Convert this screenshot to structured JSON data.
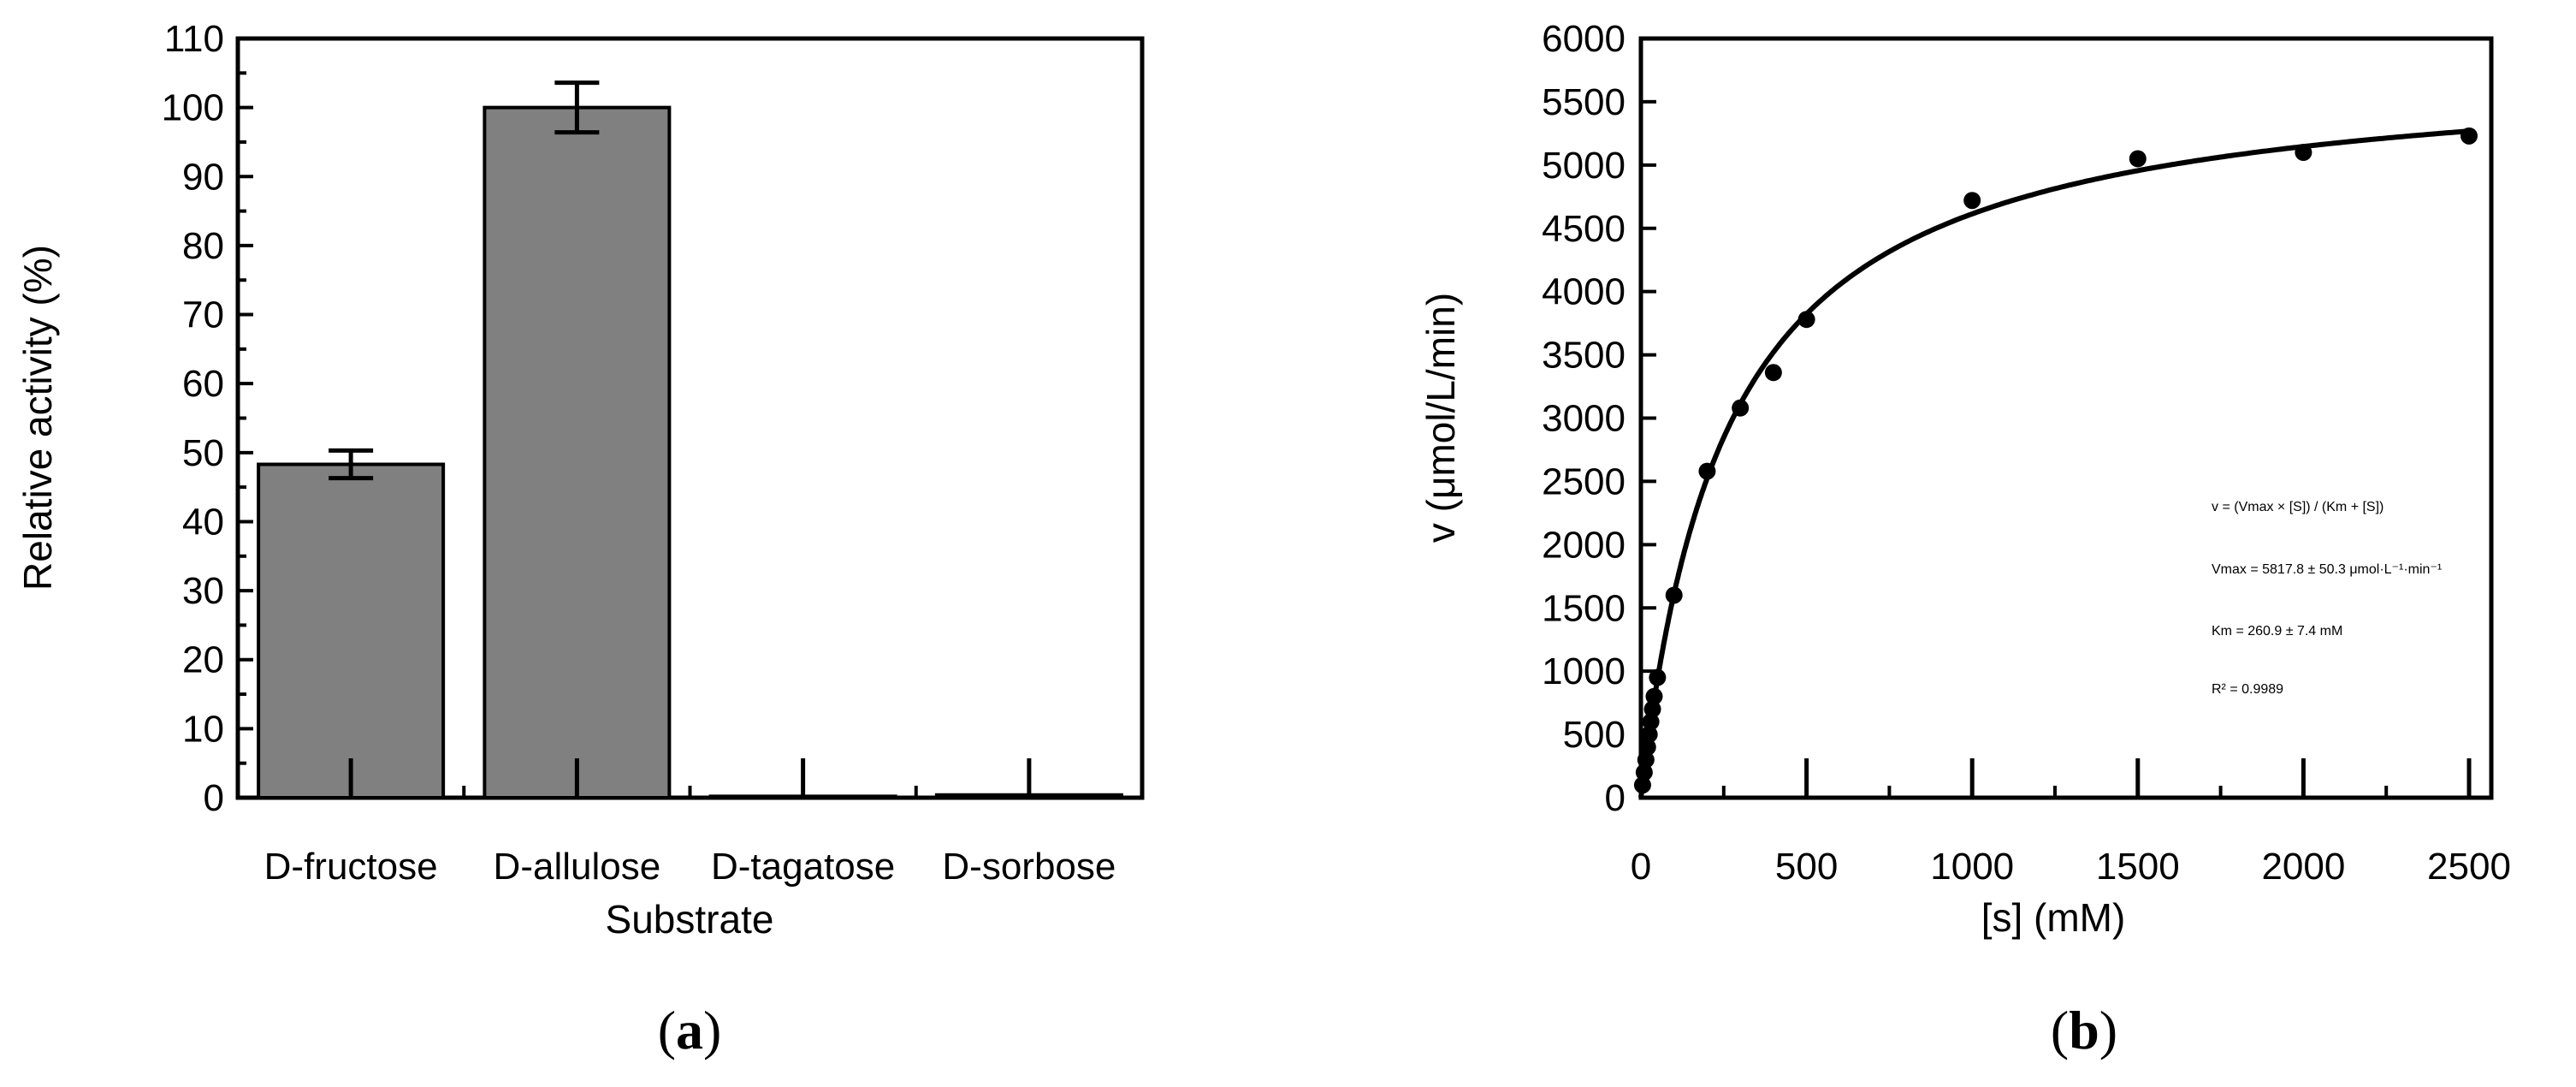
{
  "chart_data": [
    {
      "type": "bar",
      "panel_label": "a",
      "categories": [
        "D-fructose",
        "D-allulose",
        "D-tagatose",
        "D-sorbose"
      ],
      "values": [
        48.3,
        100,
        0.2,
        0.4
      ],
      "errors": [
        2.0,
        3.6,
        0,
        0
      ],
      "xlabel": "Substrate",
      "ylabel": "Relative activity (%)",
      "ylim": [
        0,
        110
      ],
      "yticks": [
        0,
        10,
        20,
        30,
        40,
        50,
        60,
        70,
        80,
        90,
        100,
        110
      ],
      "bar_color": "#808080",
      "grid": false
    },
    {
      "type": "scatter",
      "panel_label": "b",
      "xlabel": "[s] (mM)",
      "ylabel": "v (μmol/L/min)",
      "xlim": [
        0,
        2500
      ],
      "ylim": [
        0,
        6000
      ],
      "xticks": [
        0,
        500,
        1000,
        1500,
        2000,
        2500
      ],
      "yticks": [
        0,
        500,
        1000,
        1500,
        2000,
        2500,
        3000,
        3500,
        4000,
        4500,
        5000,
        5500,
        6000
      ],
      "points": [
        {
          "x": 5,
          "y": 100
        },
        {
          "x": 10,
          "y": 200
        },
        {
          "x": 15,
          "y": 300
        },
        {
          "x": 20,
          "y": 400
        },
        {
          "x": 25,
          "y": 500
        },
        {
          "x": 30,
          "y": 600
        },
        {
          "x": 35,
          "y": 700
        },
        {
          "x": 40,
          "y": 800
        },
        {
          "x": 50,
          "y": 950
        },
        {
          "x": 100,
          "y": 1600
        },
        {
          "x": 200,
          "y": 2580
        },
        {
          "x": 300,
          "y": 3080
        },
        {
          "x": 400,
          "y": 3360
        },
        {
          "x": 500,
          "y": 3780
        },
        {
          "x": 1000,
          "y": 4720
        },
        {
          "x": 1500,
          "y": 5050
        },
        {
          "x": 2000,
          "y": 5100
        },
        {
          "x": 2500,
          "y": 5230
        }
      ],
      "fit": {
        "model": "michaelis-menten",
        "vmax": 5817.8,
        "km": 260.9
      },
      "annotations": [
        "v = (Vmax × [S]) / (Km + [S])",
        "Vmax = 5817.8 ± 50.3 μmol·L⁻¹·min⁻¹",
        "Km = 260.9 ± 7.4 mM",
        "R² = 0.9989"
      ],
      "grid": false
    }
  ]
}
